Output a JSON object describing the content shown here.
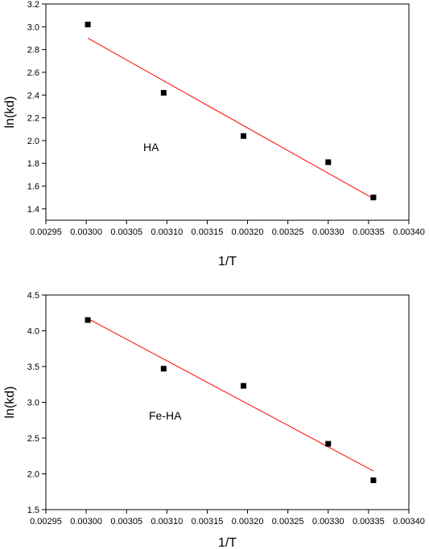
{
  "colors": {
    "points": "#000000",
    "fit_line": "#ff0000",
    "axes": "#000000"
  },
  "chart_data": [
    {
      "type": "scatter",
      "annotation": "HA",
      "xlabel": "1/T",
      "ylabel": "ln(kd)",
      "xlim": [
        0.00295,
        0.0034
      ],
      "ylim": [
        1.3,
        3.2
      ],
      "xticks": [
        "0.00295",
        "0.00300",
        "0.00305",
        "0.00310",
        "0.00315",
        "0.00320",
        "0.00325",
        "0.00330",
        "0.00335",
        "0.00340"
      ],
      "yticks": [
        "1.4",
        "1.6",
        "1.8",
        "2.0",
        "2.2",
        "2.4",
        "2.6",
        "2.8",
        "3.0",
        "3.2"
      ],
      "series": [
        {
          "marker": "square",
          "x": [
            0.003002,
            0.003096,
            0.003195,
            0.0033,
            0.003356
          ],
          "y": [
            3.02,
            2.42,
            2.04,
            1.81,
            1.5
          ]
        }
      ],
      "fit_line": {
        "x": [
          0.003002,
          0.003356
        ],
        "y": [
          2.9,
          1.49
        ]
      }
    },
    {
      "type": "scatter",
      "annotation": "Fe-HA",
      "xlabel": "1/T",
      "ylabel": "ln(kd)",
      "xlim": [
        0.00295,
        0.0034
      ],
      "ylim": [
        1.5,
        4.5
      ],
      "xticks": [
        "0.00295",
        "0.00300",
        "0.00305",
        "0.00310",
        "0.00315",
        "0.00320",
        "0.00325",
        "0.00330",
        "0.00335",
        "0.00340"
      ],
      "yticks": [
        "1.5",
        "2.0",
        "2.5",
        "3.0",
        "3.5",
        "4.0",
        "4.5"
      ],
      "series": [
        {
          "marker": "square",
          "x": [
            0.003002,
            0.003096,
            0.003195,
            0.0033,
            0.003356
          ],
          "y": [
            4.15,
            3.47,
            3.23,
            2.42,
            1.91
          ]
        }
      ],
      "fit_line": {
        "x": [
          0.003002,
          0.003356
        ],
        "y": [
          4.17,
          2.04
        ]
      }
    }
  ]
}
